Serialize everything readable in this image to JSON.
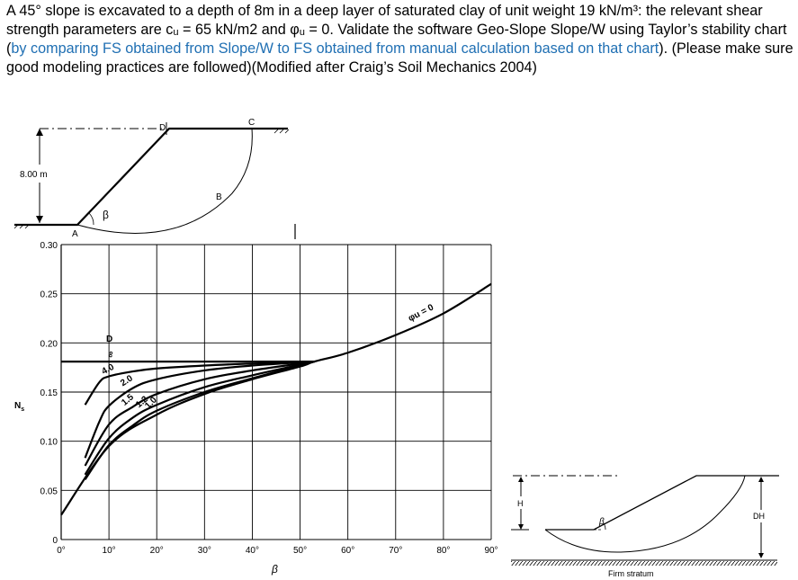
{
  "problem": {
    "text_before_link": "A 45° slope is excavated to a depth of 8m in a deep layer of saturated clay of unit weight 19 kN/m³: the relevant shear strength parameters are cᵤ = 65 kN/m2 and φᵤ = 0. Validate the software Geo-Slope Slope/W using Taylor’s stability chart (",
    "link_text": "by comparing FS obtained from Slope/W to FS obtained from manual calculation based on that chart",
    "text_after_link": "). (Please make sure good modeling practices are followed)(Modified after Craig’s Soil Mechanics 2004)"
  },
  "slope_figure": {
    "height_label": "8.00 m",
    "point_labels": {
      "a": "A",
      "b": "B",
      "c": "C",
      "d": "D"
    },
    "angle_label": "β"
  },
  "chart_data": {
    "type": "line",
    "ylabel": "N",
    "ylabel_sub": "s",
    "xlabel": "β",
    "xlim": [
      0,
      90
    ],
    "ylim": [
      0,
      0.3
    ],
    "x_ticks": [
      "0°",
      "10°",
      "20°",
      "30°",
      "40°",
      "50°",
      "60°",
      "70°",
      "80°",
      "90°"
    ],
    "y_ticks": [
      "0",
      "0.05",
      "0.10",
      "0.15",
      "0.20",
      "0.25",
      "0.30"
    ],
    "grid": true,
    "series": [
      {
        "name": "φu = 0",
        "x": [
          0,
          10,
          20,
          30,
          40,
          50,
          53,
          60,
          70,
          80,
          90
        ],
        "y": [
          0.025,
          0.095,
          0.127,
          0.148,
          0.163,
          0.176,
          0.181,
          0.19,
          0.208,
          0.23,
          0.26
        ]
      },
      {
        "name": "∞",
        "x": [
          0,
          53
        ],
        "y": [
          0.181,
          0.181
        ]
      },
      {
        "name": "4.0",
        "x": [
          5,
          8,
          10,
          15,
          20,
          30,
          40,
          53
        ],
        "y": [
          0.137,
          0.16,
          0.166,
          0.171,
          0.174,
          0.177,
          0.179,
          0.181
        ]
      },
      {
        "name": "2.0",
        "x": [
          5,
          8,
          10,
          15,
          20,
          30,
          40,
          53
        ],
        "y": [
          0.083,
          0.12,
          0.136,
          0.154,
          0.163,
          0.172,
          0.177,
          0.181
        ]
      },
      {
        "name": "1.5",
        "x": [
          5,
          10,
          15,
          20,
          30,
          40,
          53
        ],
        "y": [
          0.075,
          0.117,
          0.135,
          0.148,
          0.163,
          0.172,
          0.181
        ]
      },
      {
        "name": "1.2",
        "x": [
          5,
          10,
          15,
          20,
          30,
          40,
          53
        ],
        "y": [
          0.066,
          0.103,
          0.124,
          0.137,
          0.155,
          0.167,
          0.181
        ]
      },
      {
        "name": "1.0",
        "x": [
          5,
          10,
          15,
          20,
          30,
          40,
          53
        ],
        "y": [
          0.061,
          0.096,
          0.116,
          0.131,
          0.15,
          0.164,
          0.181
        ]
      }
    ],
    "marker_label": "D"
  },
  "depth_figure": {
    "h_label": "H",
    "dh_label": "DH",
    "angle_label": "β",
    "stratum_label": "Firm stratum"
  }
}
